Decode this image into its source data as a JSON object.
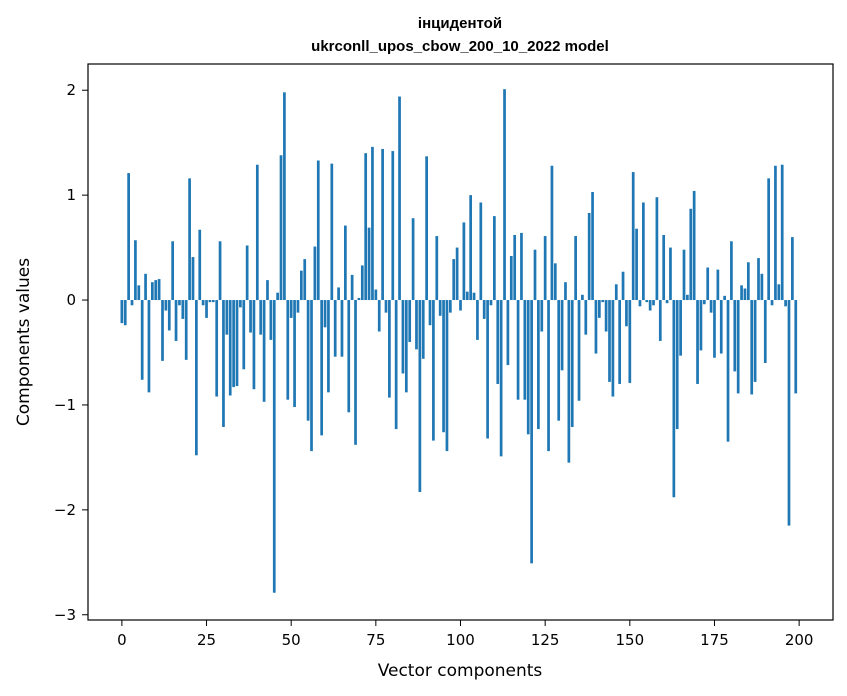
{
  "chart_data": {
    "type": "bar",
    "title": "інцидентой",
    "subtitle": "ukrconll_upos_cbow_200_10_2022 model",
    "xlabel": "Vector components",
    "ylabel": "Components values",
    "xlim": [
      -10,
      210
    ],
    "ylim": [
      -3.05,
      2.25
    ],
    "xticks": [
      0,
      25,
      50,
      75,
      100,
      125,
      150,
      175,
      200
    ],
    "xtick_labels": [
      "0",
      "25",
      "50",
      "75",
      "100",
      "125",
      "150",
      "175",
      "200"
    ],
    "yticks": [
      -3,
      -2,
      -1,
      0,
      1,
      2
    ],
    "ytick_labels": [
      "−3",
      "−2",
      "−1",
      "0",
      "1",
      "2"
    ],
    "grid": false,
    "bar_color": "#1f77b4",
    "values": [
      -0.22,
      -0.24,
      1.21,
      -0.05,
      0.57,
      0.14,
      -0.76,
      0.25,
      -0.88,
      0.17,
      0.19,
      0.2,
      -0.58,
      -0.1,
      -0.29,
      0.56,
      -0.39,
      -0.05,
      -0.18,
      -0.57,
      1.16,
      0.41,
      -1.48,
      0.67,
      -0.05,
      -0.17,
      -0.02,
      -0.02,
      -0.92,
      0.56,
      -1.21,
      -0.33,
      -0.91,
      -0.83,
      -0.82,
      -0.07,
      -0.66,
      0.52,
      -0.31,
      -0.85,
      1.29,
      -0.33,
      -0.97,
      0.19,
      -0.38,
      -2.79,
      0.07,
      1.38,
      1.98,
      -0.95,
      -0.17,
      -1.02,
      -0.12,
      0.28,
      0.39,
      -1.15,
      -1.44,
      0.51,
      1.33,
      -1.29,
      -0.26,
      -0.88,
      1.3,
      -0.54,
      0.12,
      -0.54,
      0.71,
      -1.07,
      0.24,
      -1.38,
      0.02,
      0.33,
      1.4,
      0.69,
      1.46,
      0.1,
      -0.3,
      1.44,
      -0.12,
      -0.93,
      1.42,
      -1.23,
      1.94,
      -0.7,
      -0.88,
      -0.4,
      0.78,
      -0.47,
      -1.83,
      -0.56,
      1.37,
      -0.24,
      -1.34,
      0.61,
      -0.15,
      -1.26,
      -1.44,
      -0.12,
      0.39,
      0.5,
      -0.1,
      0.74,
      0.08,
      1.0,
      0.07,
      -0.38,
      0.93,
      -0.18,
      -1.32,
      -0.05,
      0.8,
      -0.8,
      -1.49,
      2.01,
      -0.62,
      0.42,
      0.62,
      -0.95,
      0.64,
      -0.95,
      -1.28,
      -2.51,
      0.48,
      -1.23,
      -0.3,
      0.61,
      -1.44,
      1.28,
      0.35,
      -1.15,
      -0.67,
      0.17,
      -1.55,
      -1.21,
      0.61,
      -0.96,
      0.05,
      -0.33,
      0.83,
      1.03,
      -0.51,
      -0.17,
      -0.02,
      -0.3,
      -0.78,
      -0.92,
      0.15,
      -0.8,
      0.27,
      -0.25,
      -0.79,
      1.22,
      0.68,
      -0.06,
      0.93,
      -0.02,
      -0.1,
      -0.05,
      0.98,
      -0.39,
      0.62,
      -0.03,
      0.5,
      -1.88,
      -1.23,
      -0.53,
      0.48,
      0.05,
      0.87,
      1.04,
      -0.8,
      -0.48,
      -0.04,
      0.31,
      -0.12,
      -0.55,
      0.29,
      -0.51,
      0.04,
      -1.35,
      0.56,
      -0.68,
      -0.89,
      0.14,
      0.11,
      0.36,
      -0.9,
      -0.78,
      0.4,
      0.25,
      -0.6,
      1.16,
      -0.05,
      1.28,
      0.15,
      1.29,
      -0.06,
      -2.15,
      0.6,
      -0.89
    ]
  }
}
